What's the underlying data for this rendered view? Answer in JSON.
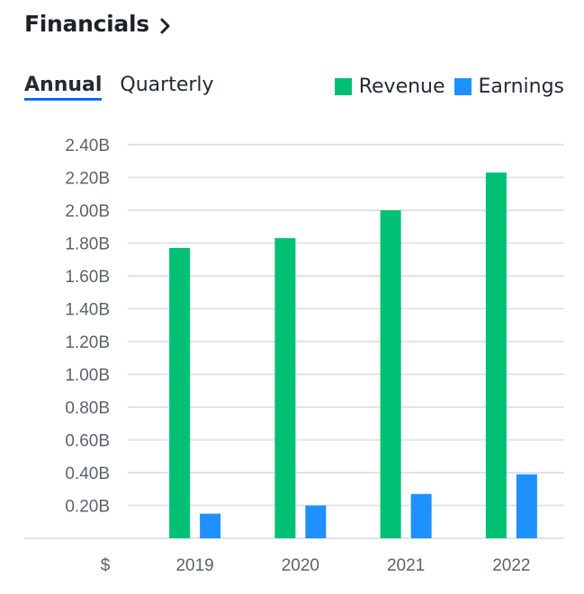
{
  "header": {
    "title": "Financials"
  },
  "tabs": [
    {
      "label": "Annual",
      "active": true
    },
    {
      "label": "Quarterly",
      "active": false
    }
  ],
  "colors": {
    "revenue": "#00c073",
    "earnings": "#1e90ff",
    "grid": "#e0e4e9",
    "axis_text": "#5b636a"
  },
  "chart_data": {
    "type": "bar",
    "categories": [
      "2019",
      "2020",
      "2021",
      "2022"
    ],
    "series": [
      {
        "name": "Revenue",
        "values": [
          1.77,
          1.83,
          2.0,
          2.23
        ]
      },
      {
        "name": "Earnings",
        "values": [
          0.15,
          0.2,
          0.27,
          0.39
        ]
      }
    ],
    "ylim": [
      0,
      2.4
    ],
    "yticks": [
      0.2,
      0.4,
      0.6,
      0.8,
      1.0,
      1.2,
      1.4,
      1.6,
      1.8,
      2.0,
      2.2,
      2.4
    ],
    "ytick_labels": [
      "0.20B",
      "0.40B",
      "0.60B",
      "0.80B",
      "1.00B",
      "1.20B",
      "1.40B",
      "1.60B",
      "1.80B",
      "2.00B",
      "2.20B",
      "2.40B"
    ],
    "currency_label": "$",
    "legend_position": "top-right",
    "grid": true
  }
}
